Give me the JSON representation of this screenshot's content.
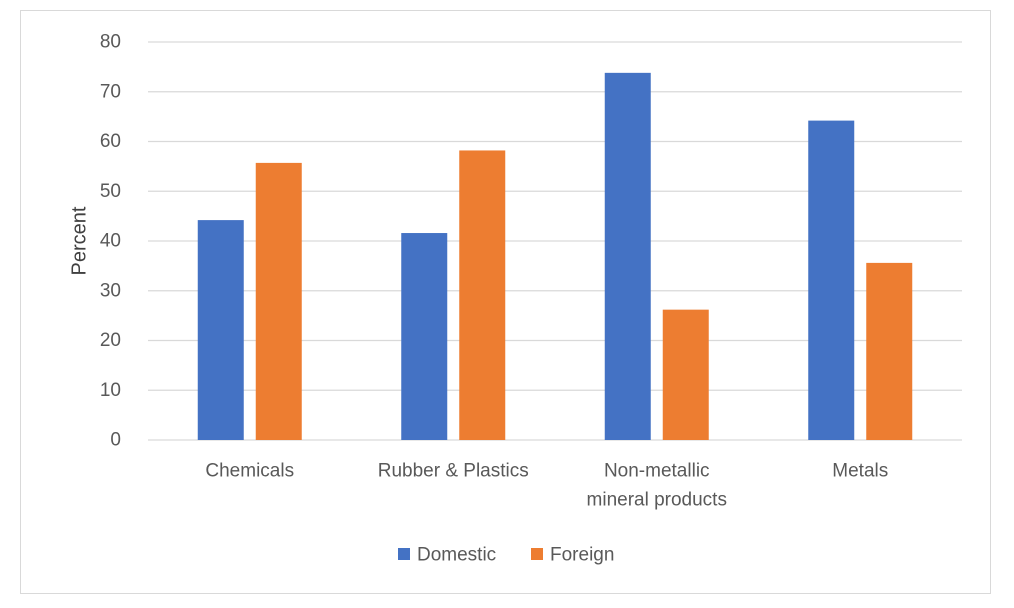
{
  "chart_data": {
    "type": "bar",
    "title": "",
    "xlabel": "",
    "ylabel": "Percent",
    "ylim": [
      0,
      80
    ],
    "yticks": [
      0,
      10,
      20,
      30,
      40,
      50,
      60,
      70,
      80
    ],
    "grid": true,
    "legend_position": "bottom",
    "categories": [
      [
        "Chemicals"
      ],
      [
        "Rubber & Plastics"
      ],
      [
        "Non-metallic",
        "mineral products"
      ],
      [
        "Metals"
      ]
    ],
    "series": [
      {
        "name": "Domestic",
        "color": "#4472c4",
        "values": [
          44.2,
          41.6,
          73.8,
          64.2
        ]
      },
      {
        "name": "Foreign",
        "color": "#ed7d31",
        "values": [
          55.7,
          58.2,
          26.2,
          35.6
        ]
      }
    ]
  }
}
